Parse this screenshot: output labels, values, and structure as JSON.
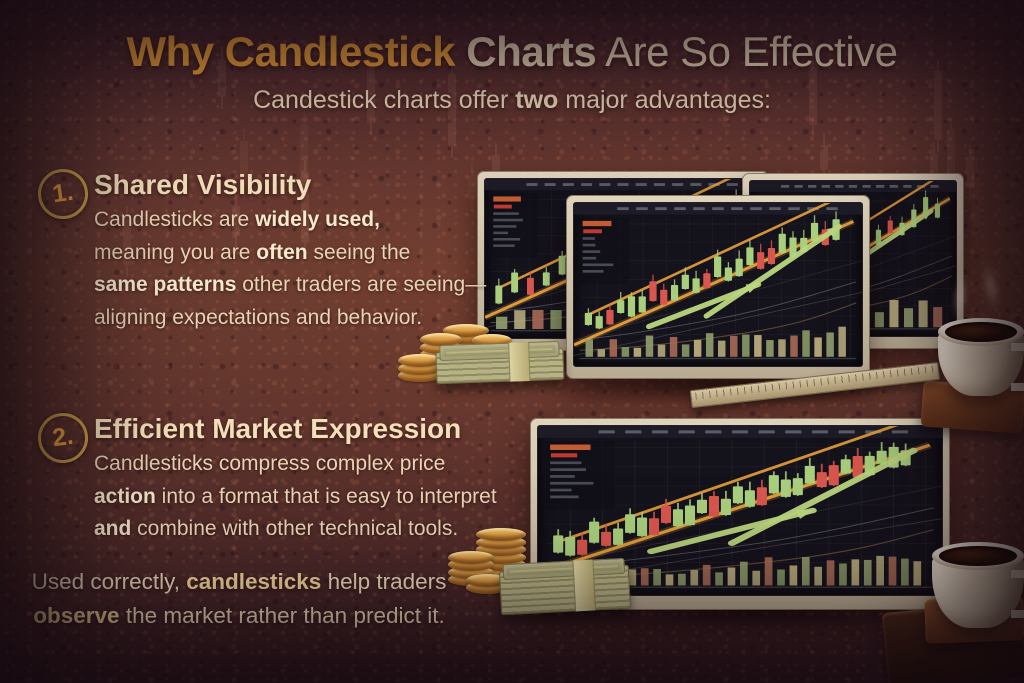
{
  "poster": {
    "title": {
      "highlight": "Why Candlestick",
      "bold_rest": " Charts",
      "rest": " Are So Effective"
    },
    "subtitle": [
      {
        "t": "Candestick charts offer "
      },
      {
        "t": "two",
        "b": true
      },
      {
        "t": " major advantages:"
      }
    ]
  },
  "sections": [
    {
      "number": "1.",
      "heading": "Shared Visibility",
      "body": [
        {
          "t": "Candlesticks are "
        },
        {
          "t": "widely used,",
          "b": true
        },
        {
          "br": true
        },
        {
          "t": "meaning you are "
        },
        {
          "t": "often",
          "b": true
        },
        {
          "t": " seeing the"
        },
        {
          "br": true
        },
        {
          "t": "same patterns",
          "b": true
        },
        {
          "t": " other traders are seeing—"
        },
        {
          "br": true
        },
        {
          "t": "aligning expectations and behavior."
        }
      ]
    },
    {
      "number": "2.",
      "heading": "Efficient Market Expression",
      "body": [
        {
          "t": "Candlesticks compress complex price"
        },
        {
          "br": true
        },
        {
          "t": "action",
          "b": true
        },
        {
          "t": " into a format that is easy to interpret"
        },
        {
          "br": true
        },
        {
          "t": "and",
          "b": true
        },
        {
          "t": " combine with other technical tools."
        }
      ]
    }
  ],
  "footer": [
    {
      "t": "Used correctly, "
    },
    {
      "t": "candlesticks",
      "b": true
    },
    {
      "t": " help traders"
    },
    {
      "br": true
    },
    {
      "t": "observe",
      "b": true
    },
    {
      "t": " the market rather than predict it."
    }
  ],
  "colors": {
    "accent_orange": "#f2a43c",
    "cream_text": "#f2dfc0",
    "badge_gold": "#f1a93e",
    "candle_up": "#a9cf7d",
    "candle_down": "#d8564d",
    "trend_line": "#e8a13c",
    "arrow_green": "#bcd67f",
    "screen_bg": "#14121b",
    "bezel": "#d2c5ae",
    "gold_coin": "#d99a42",
    "cash_green": "#b7b286"
  },
  "illustration": {
    "ghost_candles": {
      "count": 20
    },
    "monitors": [
      {
        "id": "top-left",
        "candles": "uuduuduuuduuuudu",
        "volume": 14,
        "arrows": [
          [
            32,
            44,
            86,
            14
          ]
        ],
        "seed": 3
      },
      {
        "id": "top-right",
        "candles": "uududuuuduuduuuu",
        "volume": 13,
        "arrows": [
          [
            30,
            44,
            88,
            12
          ]
        ],
        "seed": 7
      },
      {
        "id": "top-center",
        "candles": "uuduuudduuuduuuudduuuudu",
        "volume": 22,
        "arrows": [
          [
            26,
            47,
            64,
            31
          ],
          [
            46,
            43,
            92,
            9
          ]
        ],
        "seed": 11
      },
      {
        "id": "bottom",
        "candles": "uududuuudduuuduuuduuuudduduuuu",
        "volume": 30,
        "arrows": [
          [
            28,
            46,
            68,
            31
          ],
          [
            48,
            43,
            93,
            9
          ]
        ],
        "seed": 17
      }
    ],
    "volume_colors": [
      "#94a06f",
      "#b5ab7d",
      "#a96b56",
      "#8a9a68",
      "#c3b482"
    ]
  }
}
